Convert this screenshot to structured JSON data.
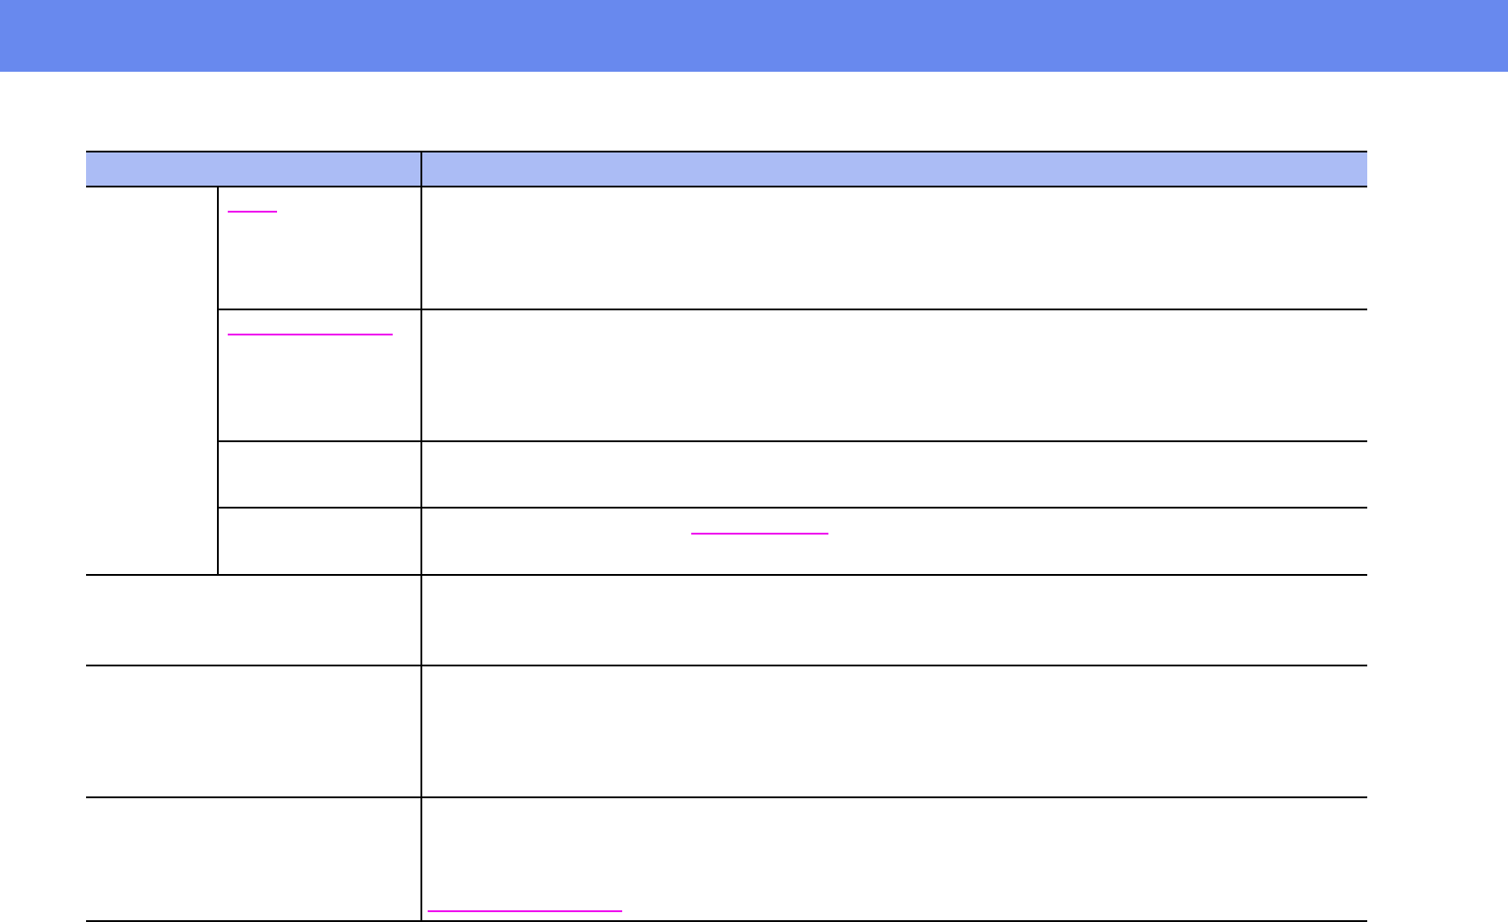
{
  "header_banner": {
    "color": "#6889ee"
  },
  "table": {
    "header_color": "#abbcf5",
    "border_color": "#000000",
    "link_color": "#ee00ee",
    "rows": 7,
    "links": 5
  }
}
